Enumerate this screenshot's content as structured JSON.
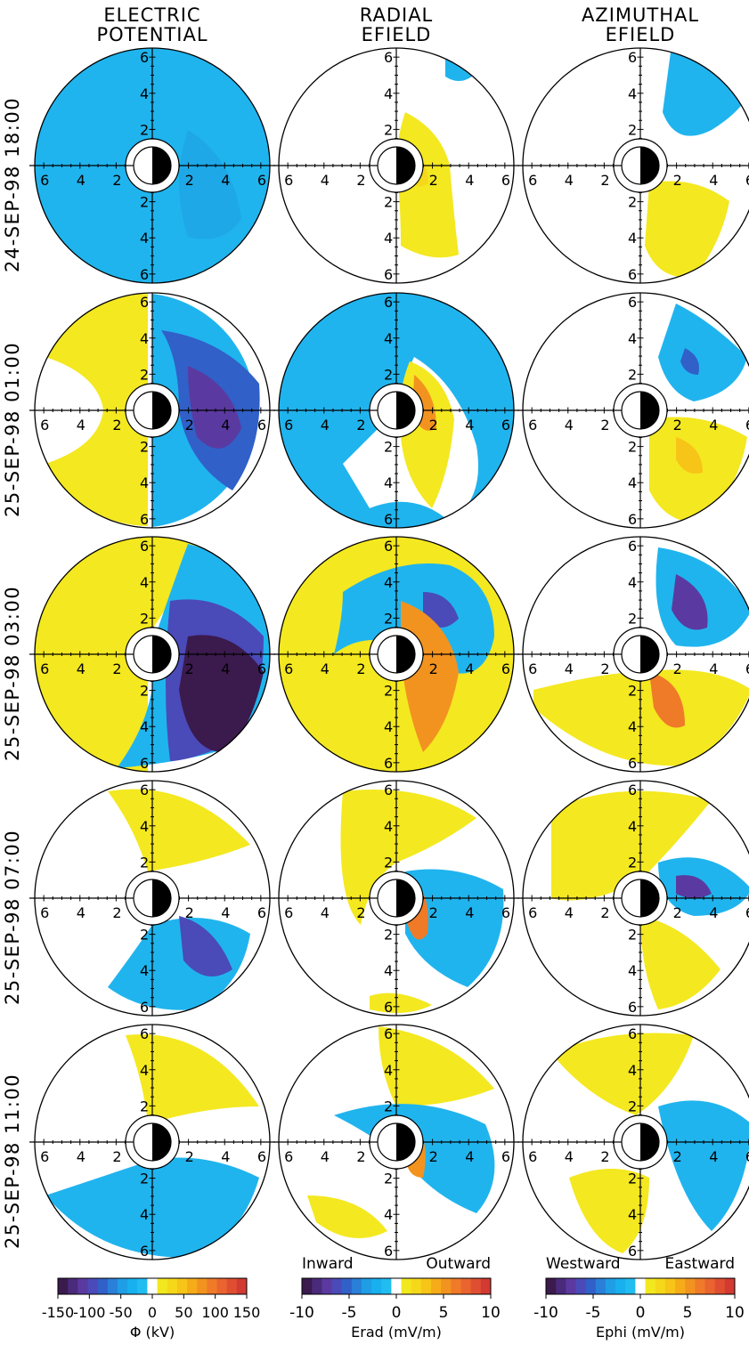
{
  "columns": [
    {
      "title": "ELECTRIC\nPOTENTIAL"
    },
    {
      "title": "RADIAL\nEFIELD"
    },
    {
      "title": "AZIMUTHAL\nEFIELD"
    }
  ],
  "rows": [
    {
      "label": "24-SEP-98 18:00"
    },
    {
      "label": "25-SEP-98 01:00"
    },
    {
      "label": "25-SEP-98 03:00"
    },
    {
      "label": "25-SEP-98 07:00"
    },
    {
      "label": "25-SEP-98 11:00"
    }
  ],
  "colorbars": [
    {
      "ticks": [
        "-150",
        "-100",
        "-50",
        "0",
        "50",
        "100",
        "150"
      ],
      "tick_values": [
        -150,
        -100,
        -50,
        0,
        50,
        100,
        150
      ],
      "range": [
        -150,
        150
      ],
      "label": "Φ (kV)",
      "left_word": "",
      "right_word": ""
    },
    {
      "ticks": [
        "-10",
        "-5",
        "0",
        "5",
        "10"
      ],
      "tick_values": [
        -10,
        -5,
        0,
        5,
        10
      ],
      "range": [
        -10,
        10
      ],
      "label": "Erad (mV/m)",
      "left_word": "Inward",
      "right_word": "Outward"
    },
    {
      "ticks": [
        "-10",
        "-5",
        "0",
        "5",
        "10"
      ],
      "tick_values": [
        -10,
        -5,
        0,
        5,
        10
      ],
      "range": [
        -10,
        10
      ],
      "label": "Ephi (mV/m)",
      "left_word": "Westward",
      "right_word": "Eastward"
    }
  ],
  "colors": {
    "negative_scale": [
      "#3b1a4e",
      "#4a2a7a",
      "#5a3aa0",
      "#4a4ab8",
      "#3060c8",
      "#2a80d8",
      "#1f9ee6",
      "#18b0ee",
      "#22bdf0"
    ],
    "positive_scale": [
      "#f2e820",
      "#f6d81a",
      "#f7c418",
      "#f5ac18",
      "#f29320",
      "#ef7a28",
      "#ea6430",
      "#e04e32",
      "#d23a32"
    ],
    "zero_band": "#ffffff",
    "blue": "#20b4ee",
    "yellow": "#f4e820",
    "earth": "#000000"
  },
  "chart_data": {
    "type": "polar-contour",
    "axis_ticks": [
      "2",
      "4",
      "6"
    ],
    "axis_tick_values": [
      2,
      4,
      6
    ],
    "r_max": 6.5
  }
}
